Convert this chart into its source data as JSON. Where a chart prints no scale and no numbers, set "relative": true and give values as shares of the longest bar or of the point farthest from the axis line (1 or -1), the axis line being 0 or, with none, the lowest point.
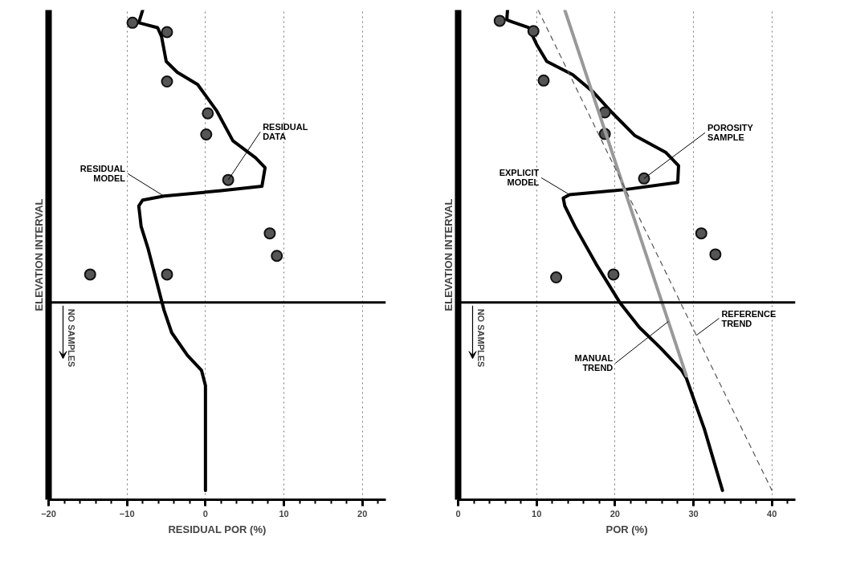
{
  "chart_data": [
    {
      "type": "line",
      "relative": true,
      "xlabel": "RESIDUAL POR (%)",
      "ylabel": "ELEVATION INTERVAL",
      "xlim": [
        -20,
        23
      ],
      "xticks": [
        -20,
        -10,
        0,
        10,
        20
      ],
      "grid": "x",
      "tick_labels": "x",
      "series": [
        {
          "color": "#000000",
          "x": [
            -8.0,
            -8.5,
            -8.0,
            -6.1,
            -5.6,
            -5.0,
            -3.6,
            -1.0,
            1.4,
            3.5,
            6.4,
            7.6,
            7.2,
            2.0,
            -5.3,
            -8.0,
            -8.5,
            -8.2,
            -7.3,
            -6.3,
            -5.3,
            -4.3,
            -2.3,
            -0.5,
            0,
            0
          ],
          "values": [
            1.0,
            0.974,
            0.972,
            0.964,
            0.946,
            0.895,
            0.873,
            0.848,
            0.795,
            0.733,
            0.698,
            0.678,
            0.64,
            0.631,
            0.62,
            0.612,
            0.6,
            0.558,
            0.512,
            0.45,
            0.388,
            0.341,
            0.295,
            0.264,
            0.233,
            0.019
          ]
        },
        {
          "type": "scatter",
          "marker": "circle",
          "color": "#555555",
          "x": [
            -9.3,
            -4.9,
            -4.9,
            0.3,
            0.1,
            2.9,
            8.2,
            9.1,
            -14.7,
            -4.9
          ],
          "values": [
            0.974,
            0.955,
            0.854,
            0.789,
            0.746,
            0.653,
            0.544,
            0.498,
            0.46,
            0.46
          ]
        }
      ],
      "ref_lines": [
        {
          "axis": "y",
          "value": 0.403,
          "color": "#000000"
        }
      ],
      "annotations": [
        {
          "text": "RESIDUAL DATA",
          "x": 2.9,
          "y": 0.653
        },
        {
          "text": "RESIDUAL MODEL",
          "x": -5.3,
          "y": 0.62
        },
        "NO SAMPLES"
      ]
    },
    {
      "type": "line",
      "relative": true,
      "xlabel": "POR (%)",
      "ylabel": "ELEVATION INTERVAL",
      "xlim": [
        0,
        43
      ],
      "xticks": [
        0,
        10,
        20,
        30,
        40
      ],
      "grid": "x",
      "tick_labels": "x",
      "series": [
        {
          "color": "#000000",
          "x": [
            6.3,
            6.2,
            6.7,
            9.0,
            10.0,
            11.3,
            14.6,
            17.2,
            19.6,
            22.5,
            26.5,
            28.1,
            28.0,
            21.1,
            14.2,
            13.4,
            13.6,
            14.9,
            17.6,
            20.6,
            23.1,
            25.8,
            28.5,
            29.1,
            31.4,
            33.7
          ],
          "values": [
            1.0,
            0.98,
            0.977,
            0.964,
            0.93,
            0.895,
            0.868,
            0.833,
            0.791,
            0.744,
            0.709,
            0.682,
            0.648,
            0.633,
            0.623,
            0.616,
            0.6,
            0.558,
            0.481,
            0.403,
            0.352,
            0.31,
            0.264,
            0.248,
            0.144,
            0.019
          ]
        },
        {
          "type": "scatter",
          "marker": "circle",
          "color": "#555555",
          "x": [
            5.3,
            9.6,
            10.9,
            18.7,
            18.7,
            23.7,
            31.0,
            32.8,
            12.5,
            19.8
          ],
          "values": [
            0.978,
            0.957,
            0.856,
            0.791,
            0.747,
            0.656,
            0.544,
            0.501,
            0.454,
            0.46
          ]
        },
        {
          "type": "line",
          "color": "#999999",
          "line_style": "solid",
          "x": [
            13.6,
            29.1
          ],
          "values": [
            1.0,
            0.253
          ]
        },
        {
          "type": "line",
          "color": "#555555",
          "line_style": "dashed",
          "x": [
            10.2,
            40.0
          ],
          "values": [
            1.0,
            0.019
          ]
        }
      ],
      "ref_lines": [
        {
          "axis": "y",
          "value": 0.403,
          "color": "#000000"
        }
      ],
      "annotations": [
        {
          "text": "POROSITY SAMPLE",
          "x": 23.7,
          "y": 0.656
        },
        {
          "text": "EXPLICIT MODEL",
          "x": 14.2,
          "y": 0.623
        },
        {
          "text": "REFERENCE TREND",
          "x": 30.4,
          "y": 0.336
        },
        {
          "text": "MANUAL TREND",
          "x": 26.8,
          "y": 0.364
        },
        "NO SAMPLES"
      ]
    }
  ]
}
